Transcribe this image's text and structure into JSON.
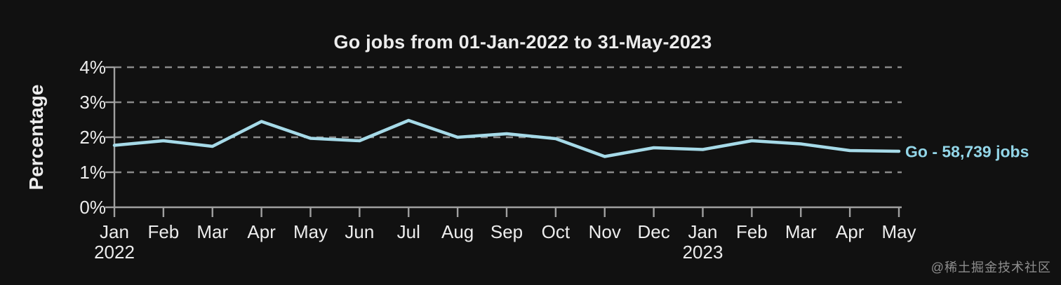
{
  "title": "Go jobs from 01-Jan-2022 to 31-May-2023",
  "watermark": "@稀土掘金技术社区",
  "colors": {
    "background": "#111111",
    "text": "#ececec",
    "axis": "#a0a0a0",
    "grid": "#8a8a8a",
    "series": "#a6dae8",
    "series-label": "#93d6e8",
    "watermark": "#8e8e8e"
  },
  "chart_data": {
    "type": "line",
    "title": "Go jobs from 01-Jan-2022 to 31-May-2023",
    "xlabel": "",
    "ylabel": "Percentage",
    "ylim": [
      0,
      4
    ],
    "grid": "horizontal-dashed",
    "legend_position": "right-of-line-end",
    "y_ticks": [
      {
        "value": 0,
        "label": "0%"
      },
      {
        "value": 1,
        "label": "1%"
      },
      {
        "value": 2,
        "label": "2%"
      },
      {
        "value": 3,
        "label": "3%"
      },
      {
        "value": 4,
        "label": "4%"
      }
    ],
    "x_categories": [
      "Jan",
      "Feb",
      "Mar",
      "Apr",
      "May",
      "Jun",
      "Jul",
      "Aug",
      "Sep",
      "Oct",
      "Nov",
      "Dec",
      "Jan",
      "Feb",
      "Mar",
      "Apr",
      "May"
    ],
    "x_year_labels": [
      {
        "index": 0,
        "label": "2022"
      },
      {
        "index": 12,
        "label": "2023"
      }
    ],
    "series": [
      {
        "name": "Go",
        "label": "Go - 58,739 jobs",
        "color": "#a6dae8",
        "values_percent": [
          1.77,
          1.9,
          1.74,
          2.45,
          1.97,
          1.9,
          2.48,
          2.0,
          2.1,
          1.96,
          1.45,
          1.7,
          1.65,
          1.9,
          1.81,
          1.62,
          1.6
        ]
      }
    ]
  }
}
